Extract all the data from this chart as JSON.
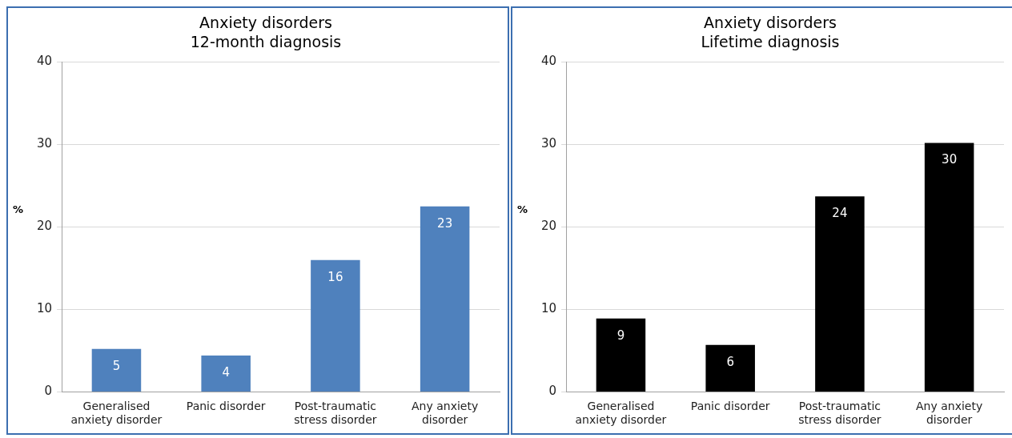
{
  "chart_data": [
    {
      "type": "bar",
      "title": "Anxiety disorders\n12-month diagnosis",
      "ylabel": "%",
      "categories": [
        "Generalised anxiety disorder",
        "Panic disorder",
        "Post-traumatic stress disorder",
        "Any anxiety disorder"
      ],
      "values": [
        5.2,
        4.4,
        16,
        22.5
      ],
      "value_labels": [
        "5",
        "4",
        "16",
        "23"
      ],
      "color": "#4f81bd",
      "ylim": [
        0,
        40
      ],
      "yticks": [
        0,
        10,
        20,
        30,
        40
      ],
      "grid": "y"
    },
    {
      "type": "bar",
      "title": "Anxiety disorders\nLifetime diagnosis",
      "ylabel": "%",
      "categories": [
        "Generalised anxiety disorder",
        "Panic disorder",
        "Post-traumatic stress disorder",
        "Any anxiety disorder"
      ],
      "values": [
        8.9,
        5.7,
        23.7,
        30.2
      ],
      "value_labels": [
        "9",
        "6",
        "24",
        "30"
      ],
      "color": "#000000",
      "ylim": [
        0,
        40
      ],
      "yticks": [
        0,
        10,
        20,
        30,
        40
      ],
      "grid": "y"
    }
  ]
}
